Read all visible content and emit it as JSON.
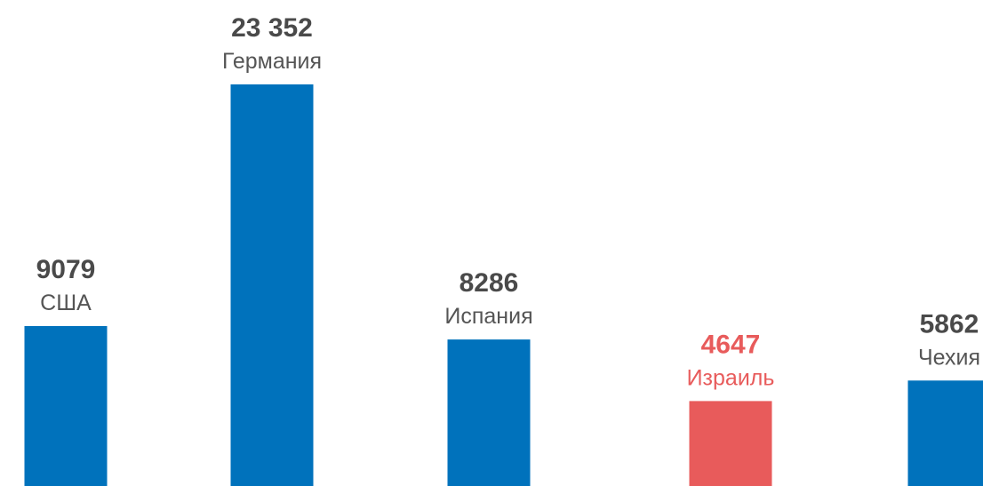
{
  "chart_data": {
    "type": "bar",
    "categories": [
      "США",
      "Германия",
      "Испания",
      "Израиль",
      "Чехия"
    ],
    "values": [
      9079,
      23352,
      8286,
      4647,
      5862
    ],
    "value_labels": [
      "9079",
      "23 352",
      "8286",
      "4647",
      "5862"
    ],
    "highlight_index": 3,
    "grid": false,
    "axes_visible": false,
    "colors": {
      "bar": "#0072bc",
      "highlight": "#e85b5b",
      "value_text": "#4a4a4a",
      "category_text": "#555555"
    }
  }
}
